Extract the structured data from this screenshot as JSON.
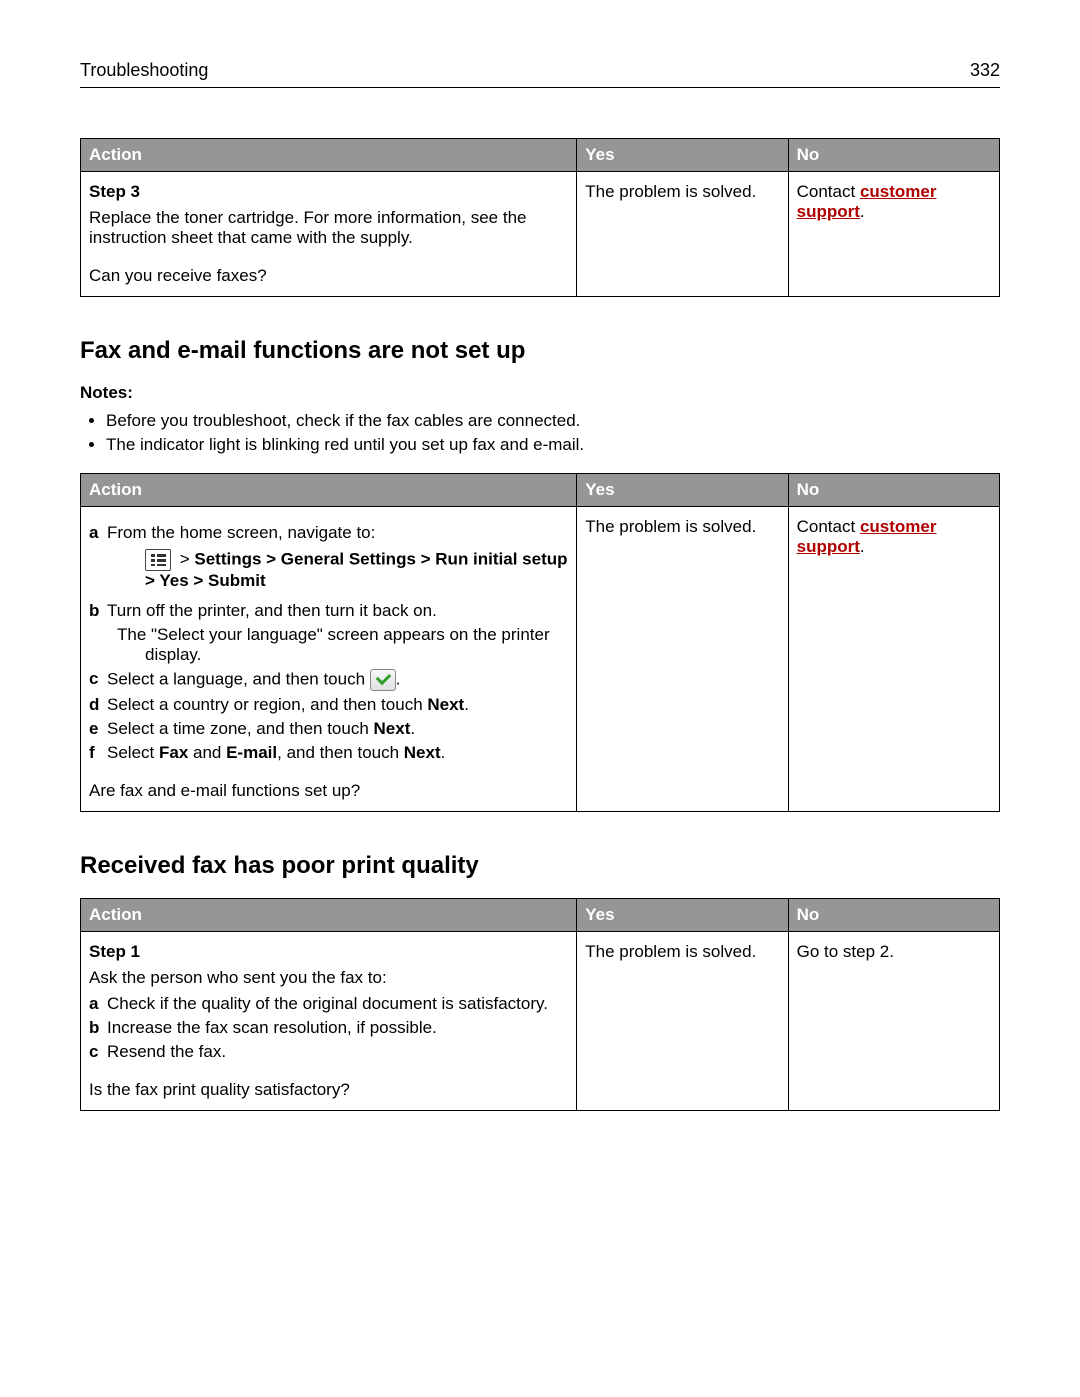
{
  "header": {
    "section": "Troubleshooting",
    "page": "332"
  },
  "table1": {
    "headers": {
      "action": "Action",
      "yes": "Yes",
      "no": "No"
    },
    "row": {
      "step": "Step 3",
      "body": "Replace the toner cartridge. For more information, see the instruction sheet that came with the supply.",
      "question": "Can you receive faxes?",
      "yes": "The problem is solved.",
      "no_prefix": "Contact ",
      "no_link": "customer support",
      "no_suffix": "."
    }
  },
  "section2": {
    "title": "Fax and e-mail functions are not set up",
    "notes_label": "Notes:",
    "notes": [
      "Before you troubleshoot, check if the fax cables are connected.",
      "The indicator light is blinking red until you set up fax and e‑mail."
    ]
  },
  "table2": {
    "headers": {
      "action": "Action",
      "yes": "Yes",
      "no": "No"
    },
    "row": {
      "a": "From the home screen, navigate to:",
      "path_prefix": " > ",
      "path_bold": "Settings > General Settings > Run initial setup > Yes > Submit",
      "b": "Turn off the printer, and then turn it back on.",
      "b_after": "The \"Select your language\" screen appears on the printer display.",
      "c_prefix": "Select a language, and then touch ",
      "c_suffix": ".",
      "d_prefix": "Select a country or region, and then touch ",
      "d_bold": "Next",
      "d_suffix": ".",
      "e_prefix": "Select a time zone, and then touch ",
      "e_bold": "Next",
      "e_suffix": ".",
      "f_prefix": "Select ",
      "f_bold1": "Fax",
      "f_mid1": " and ",
      "f_bold2": "E‑mail",
      "f_mid2": ", and then touch ",
      "f_bold3": "Next",
      "f_suffix": ".",
      "question": "Are fax and e‑mail functions set up?",
      "yes": "The problem is solved.",
      "no_prefix": "Contact ",
      "no_link": "customer support",
      "no_suffix": "."
    }
  },
  "section3": {
    "title": "Received fax has poor print quality"
  },
  "table3": {
    "headers": {
      "action": "Action",
      "yes": "Yes",
      "no": "No"
    },
    "row": {
      "step": "Step 1",
      "lead": "Ask the person who sent you the fax to:",
      "a": "Check if the quality of the original document is satisfactory.",
      "b": "Increase the fax scan resolution, if possible.",
      "c": "Resend the fax.",
      "question": "Is the fax print quality satisfactory?",
      "yes": "The problem is solved.",
      "no": "Go to step 2."
    }
  }
}
